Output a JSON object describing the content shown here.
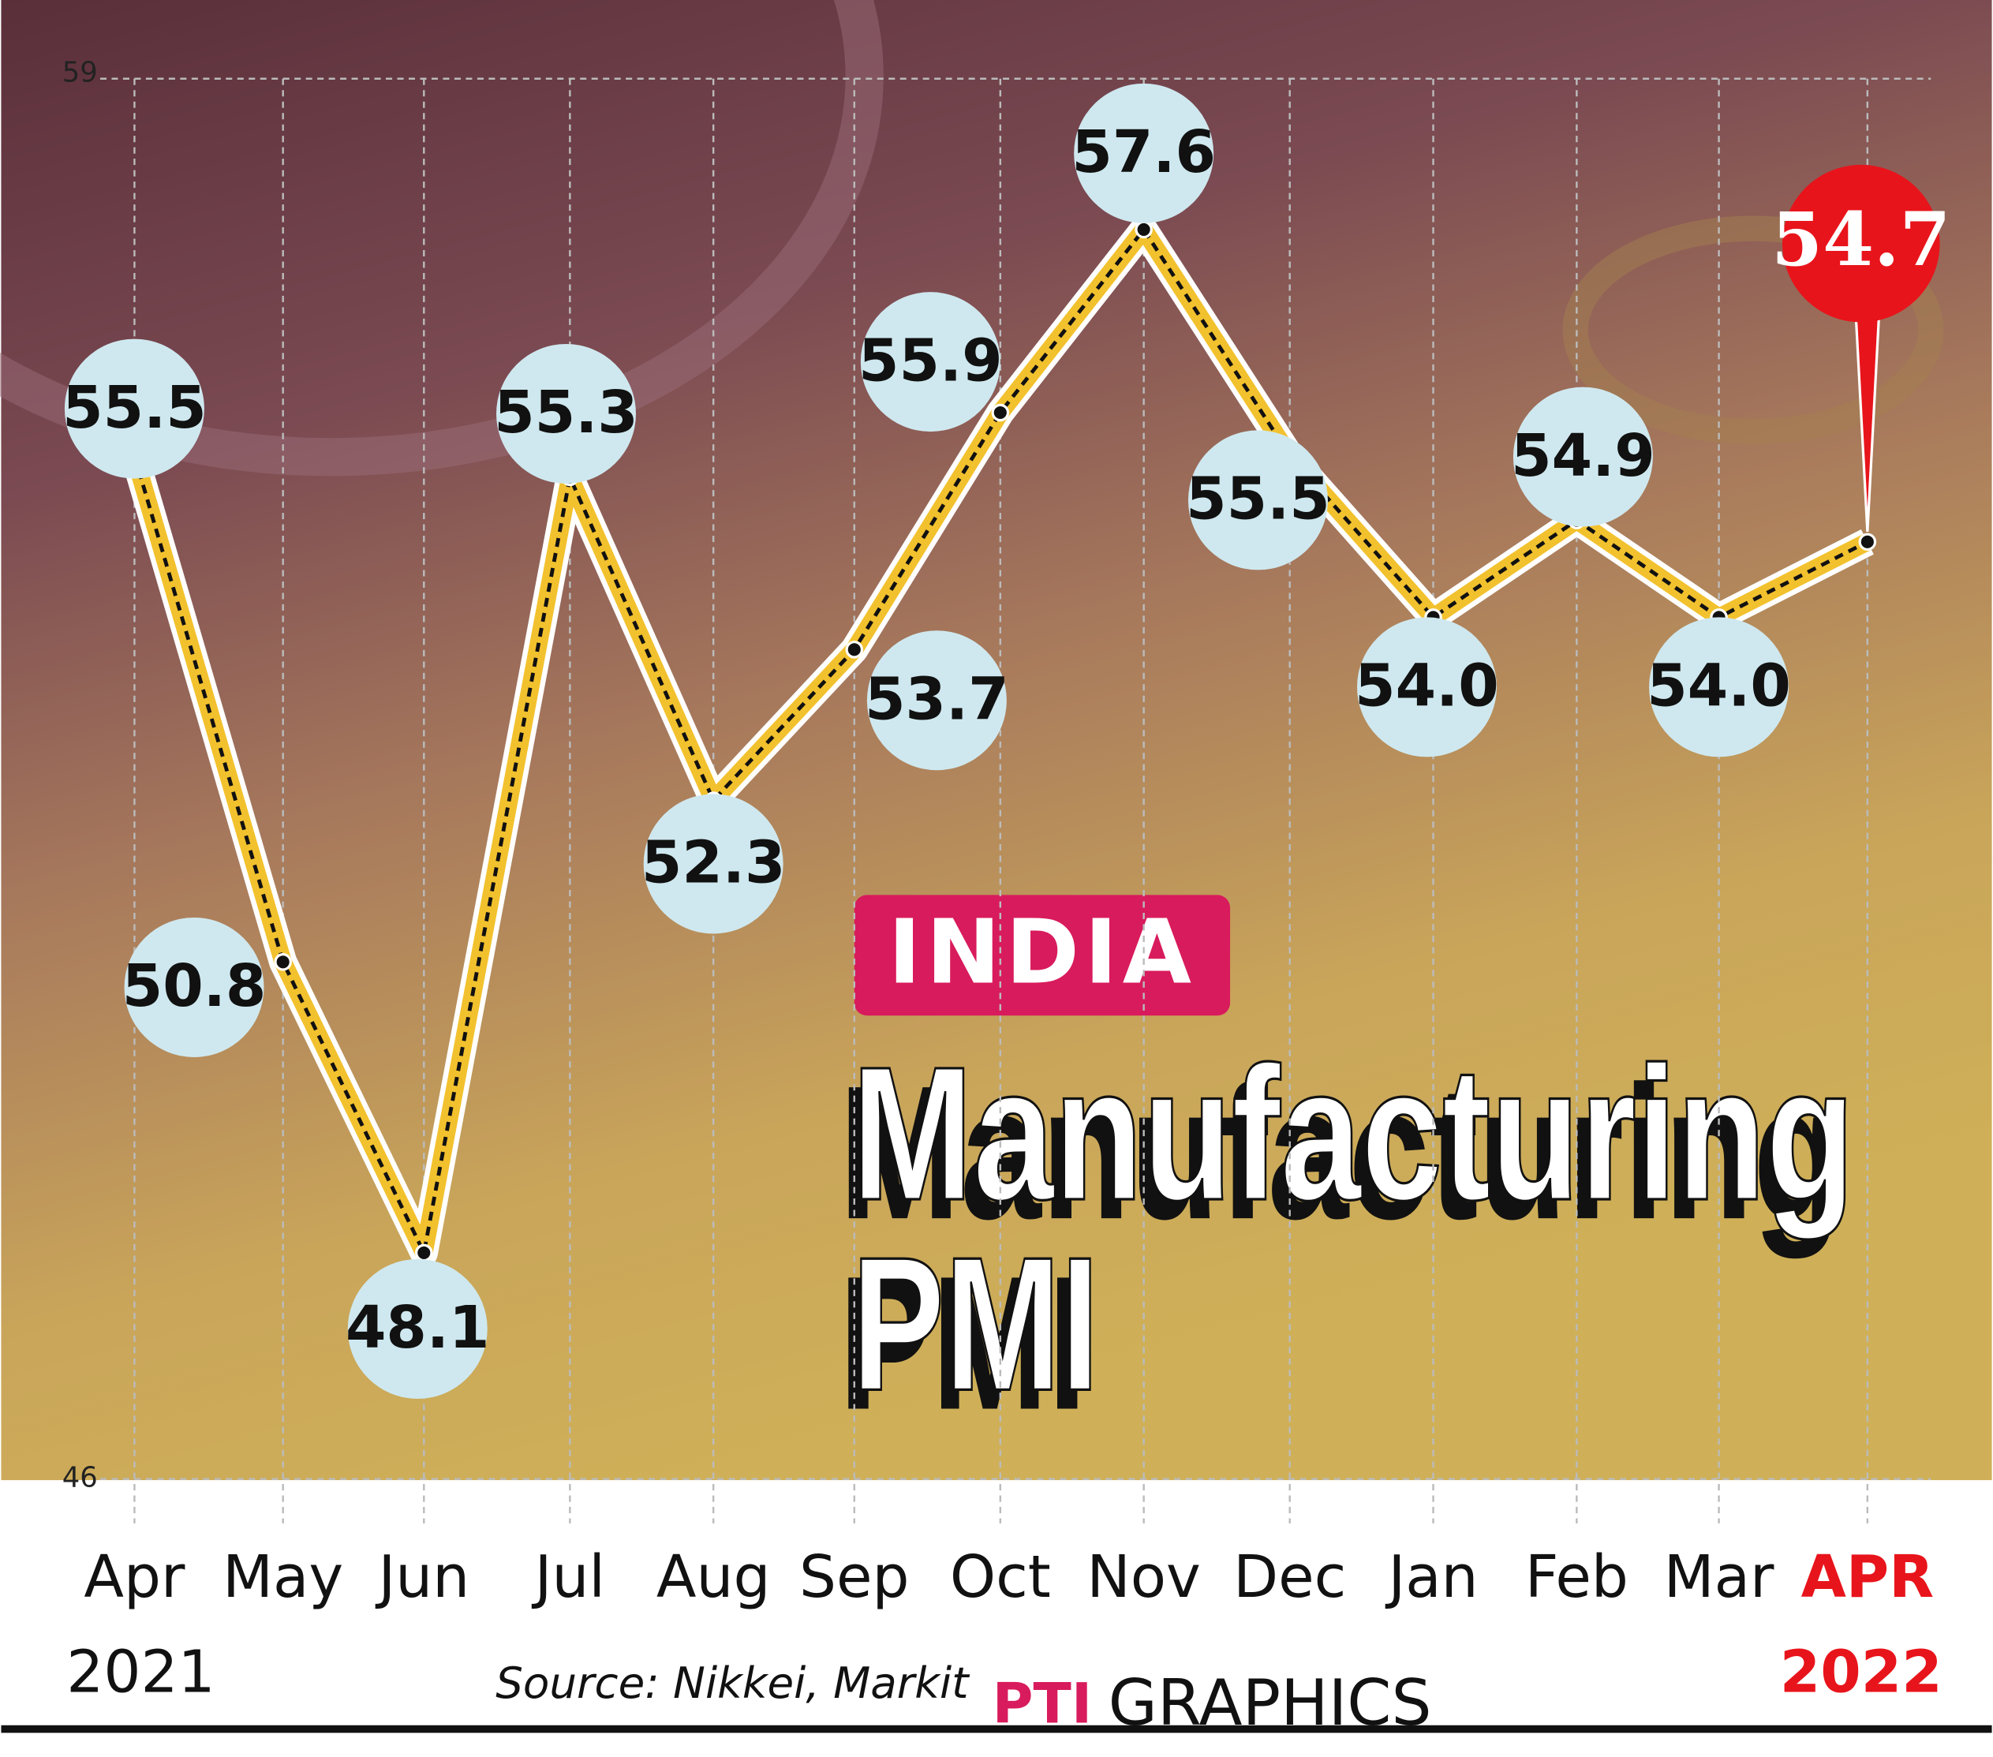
{
  "chart_data": {
    "type": "line",
    "title": "INDIA",
    "subtitle": [
      "Manufacturing",
      "PMI"
    ],
    "categories": [
      "Apr",
      "May",
      "Jun",
      "Jul",
      "Aug",
      "Sep",
      "Oct",
      "Nov",
      "Dec",
      "Jan",
      "Feb",
      "Mar",
      "APR"
    ],
    "x_start_year": "2021",
    "x_end_year": "2022",
    "values": [
      55.5,
      50.8,
      48.1,
      55.3,
      52.3,
      53.7,
      55.9,
      57.6,
      55.5,
      54.0,
      54.9,
      54.0,
      54.7
    ],
    "value_labels": [
      "55.5",
      "50.8",
      "48.1",
      "55.3",
      "52.3",
      "53.7",
      "55.9",
      "57.6",
      "55.5",
      "54.0",
      "54.9",
      "54.0",
      "54.7"
    ],
    "color": "#f2c12e",
    "label_color": "#cfe8ef",
    "highlight_color": "#e8141b",
    "ylim": [
      46,
      59
    ],
    "yticks": [
      46,
      59
    ],
    "grid": true,
    "source": "Source: Nikkei, Markit",
    "credit_logo": "PTI",
    "credit": "GRAPHICS"
  }
}
